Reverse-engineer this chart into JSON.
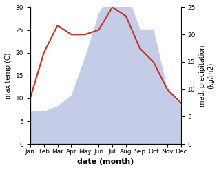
{
  "months": [
    "Jan",
    "Feb",
    "Mar",
    "Apr",
    "May",
    "Jun",
    "Jul",
    "Aug",
    "Sep",
    "Oct",
    "Nov",
    "Dec"
  ],
  "temperature": [
    10,
    20,
    26,
    24,
    24,
    25,
    30,
    28,
    21,
    18,
    12,
    9
  ],
  "precipitation": [
    6,
    6,
    7,
    9,
    16,
    24,
    28,
    28,
    21,
    21,
    10,
    7
  ],
  "temp_color": "#c0392b",
  "precip_fill_color": "#c5cce8",
  "precip_edge_color": "#aab4d4",
  "ylabel_left": "max temp (C)",
  "ylabel_right": "med. precipitation\n(kg/m2)",
  "xlabel": "date (month)",
  "ylim_left": [
    0,
    30
  ],
  "ylim_right": [
    0,
    25
  ],
  "left_ticks": [
    0,
    5,
    10,
    15,
    20,
    25,
    30
  ],
  "right_ticks": [
    0,
    5,
    10,
    15,
    20,
    25
  ],
  "background_color": "#ffffff",
  "title_fontsize": 8,
  "label_fontsize": 7,
  "tick_fontsize": 6.5
}
